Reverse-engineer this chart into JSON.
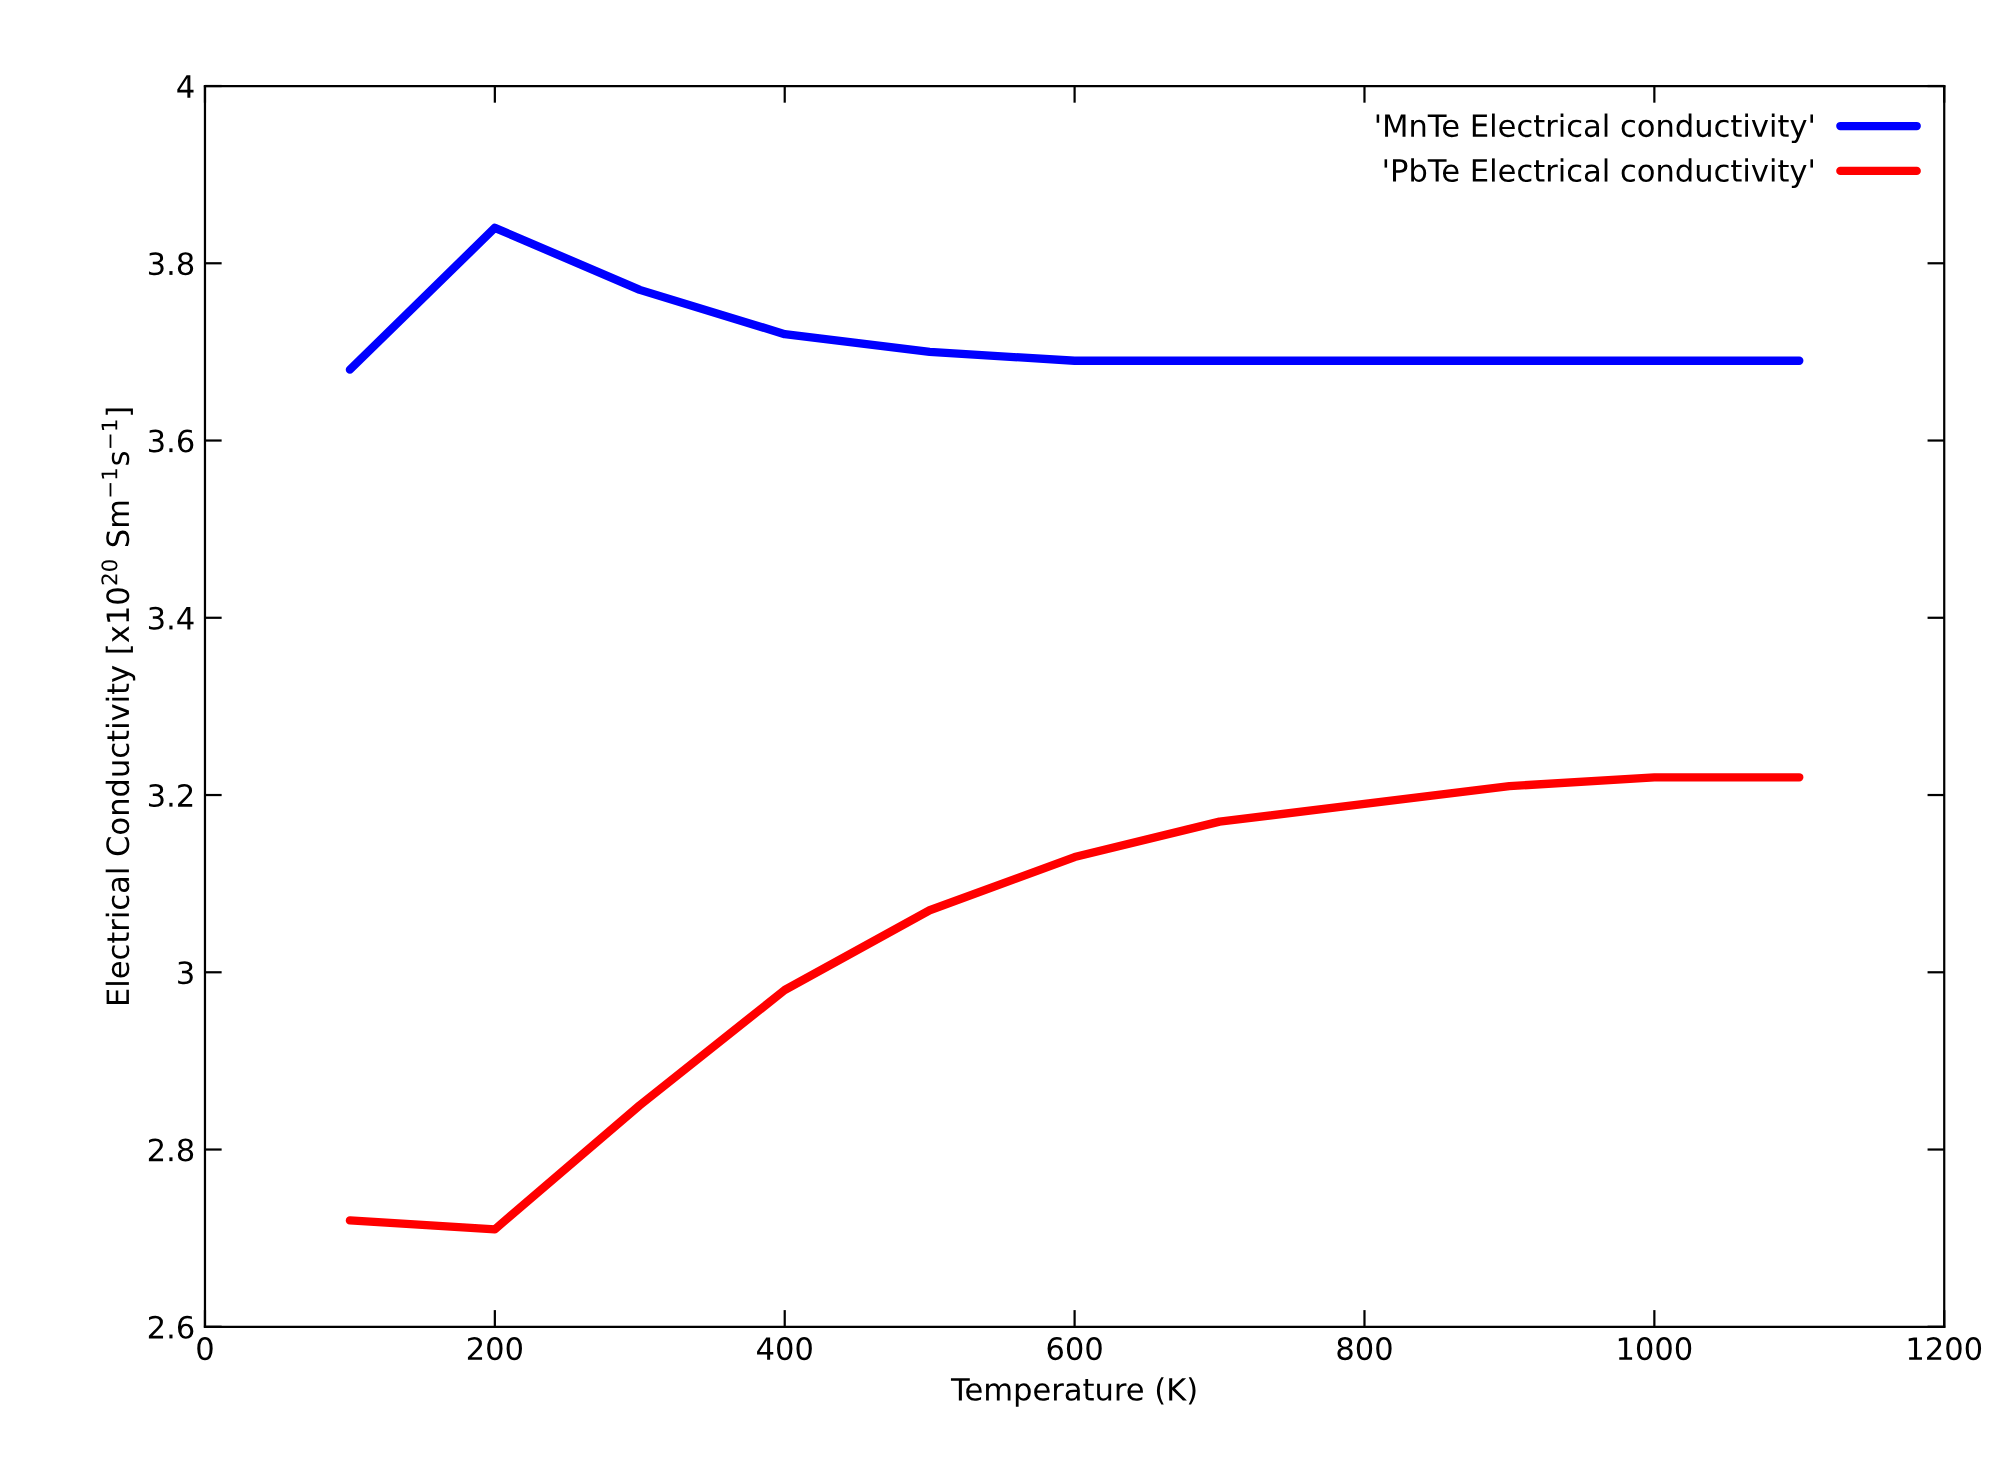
{
  "chart_data": {
    "type": "line",
    "xlabel": "Temperature (K)",
    "ylabel": "Electrical Conductivity [x10$^{20}$ Sm$^{−1}$s$^{−1}$]",
    "x": [
      100,
      200,
      300,
      400,
      500,
      600,
      700,
      800,
      900,
      1000,
      1100
    ],
    "series": [
      {
        "name": "'MnTe Electrical conductivity'",
        "color": "#0000ff",
        "values": [
          3.68,
          3.84,
          3.77,
          3.72,
          3.7,
          3.69,
          3.69,
          3.69,
          3.69,
          3.69,
          3.69
        ]
      },
      {
        "name": "'PbTe Electrical conductivity'",
        "color": "#ff0000",
        "values": [
          2.72,
          2.71,
          2.85,
          2.98,
          3.07,
          3.13,
          3.17,
          3.19,
          3.21,
          3.22,
          3.22
        ]
      }
    ],
    "xlim": [
      0,
      1200
    ],
    "xticks": [
      0,
      200,
      400,
      600,
      800,
      1000,
      1200
    ],
    "ylim": [
      2.6,
      4
    ],
    "yticks": [
      2.6,
      2.8,
      3,
      3.2,
      3.4,
      3.6,
      3.8,
      4
    ],
    "grid": false,
    "legend": "top right",
    "marker": "none",
    "line_style": "solid"
  }
}
